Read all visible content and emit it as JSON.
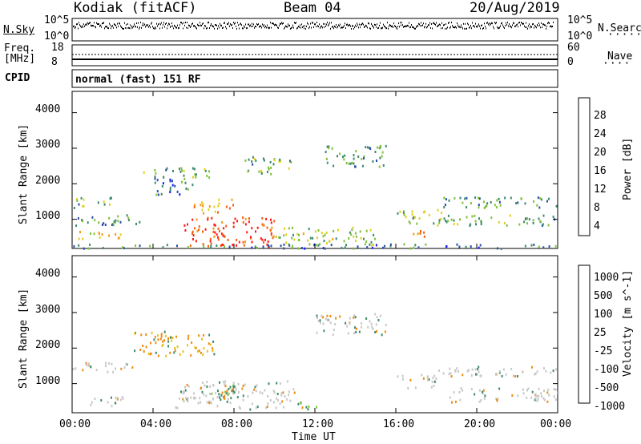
{
  "header": {
    "station": "Kodiak (fitACF)",
    "beam": "Beam 04",
    "date": "20/Aug/2019"
  },
  "top_panels": {
    "nsky": {
      "label": "N.Sky",
      "ticks": [
        "10^5",
        "10^0"
      ]
    },
    "nsearch": {
      "label": "N.Search",
      "ticks": [
        "10^5",
        "10^0"
      ]
    },
    "freq": {
      "label_line1": "Freq.",
      "label_line2": "[MHz]",
      "ticks": [
        "18",
        "8"
      ]
    },
    "nave": {
      "label": "Nave",
      "ticks": [
        "60",
        "0"
      ]
    },
    "cpid": {
      "label": "CPID",
      "value": "normal (fast) 151 RF"
    }
  },
  "colors": {
    "power_scale": [
      "#1a1aff",
      "#2a4fa8",
      "#3c8a6e",
      "#7fc13a",
      "#e0d020",
      "#f39a10",
      "#f06010",
      "#ff1a1a"
    ],
    "velocity_scale": [
      "#1a2ad0",
      "#2a5ab0",
      "#3f8a6a",
      "#7ec83a",
      "#c8c8c8",
      "#e8c020",
      "#f08a10",
      "#f04010",
      "#ff0000"
    ]
  },
  "chart_data": [
    {
      "type": "heatmap",
      "title": "Power",
      "xlabel": "Time UT",
      "ylabel": "Slant Range [km]",
      "x_ticks": [
        "00:00",
        "04:00",
        "08:00",
        "12:00",
        "16:00",
        "20:00",
        "00:00"
      ],
      "xlim": [
        "00:00",
        "24:00"
      ],
      "y_ticks": [
        1000,
        2000,
        3000,
        4000
      ],
      "ylim": [
        180,
        4600
      ],
      "colorbar": {
        "label": "Power [dB]",
        "ticks": [
          4,
          8,
          12,
          16,
          20,
          24,
          28
        ],
        "range": [
          0,
          30
        ]
      },
      "regions": [
        {
          "t": [
            0.0,
            2.0
          ],
          "range": [
            1350,
            1650
          ],
          "value": 12
        },
        {
          "t": [
            0.0,
            3.5
          ],
          "range": [
            850,
            1150
          ],
          "value": 10
        },
        {
          "t": [
            0.3,
            2.5
          ],
          "range": [
            450,
            700
          ],
          "value": 18
        },
        {
          "t": [
            3.5,
            7.0
          ],
          "range": [
            2200,
            2500
          ],
          "value": 12
        },
        {
          "t": [
            4.0,
            6.0
          ],
          "range": [
            1700,
            2200
          ],
          "value": 8
        },
        {
          "t": [
            5.5,
            10.0
          ],
          "range": [
            250,
            1100
          ],
          "value": 26
        },
        {
          "t": [
            6.0,
            8.0
          ],
          "range": [
            1200,
            1600
          ],
          "value": 20
        },
        {
          "t": [
            8.5,
            11.0
          ],
          "range": [
            2300,
            2800
          ],
          "value": 12
        },
        {
          "t": [
            10.0,
            15.0
          ],
          "range": [
            300,
            800
          ],
          "value": 14
        },
        {
          "t": [
            12.5,
            15.5
          ],
          "range": [
            2500,
            3100
          ],
          "value": 10
        },
        {
          "t": [
            16.0,
            18.5
          ],
          "range": [
            900,
            1300
          ],
          "value": 14
        },
        {
          "t": [
            16.5,
            17.5
          ],
          "range": [
            450,
            700
          ],
          "value": 22
        },
        {
          "t": [
            18.0,
            24.0
          ],
          "range": [
            1350,
            1650
          ],
          "value": 10
        },
        {
          "t": [
            18.0,
            24.0
          ],
          "range": [
            850,
            1150
          ],
          "value": 12
        },
        {
          "t": [
            0.0,
            24.0
          ],
          "range": [
            200,
            330
          ],
          "value": 8
        }
      ]
    },
    {
      "type": "heatmap",
      "title": "Velocity",
      "xlabel": "Time UT",
      "ylabel": "Slant Range [km]",
      "x_ticks": [
        "00:00",
        "04:00",
        "08:00",
        "12:00",
        "16:00",
        "20:00",
        "00:00"
      ],
      "xlim": [
        "00:00",
        "24:00"
      ],
      "y_ticks": [
        1000,
        2000,
        3000,
        4000
      ],
      "ylim": [
        180,
        4600
      ],
      "colorbar": {
        "label": "Velocity [m s^-1]",
        "ticks": [
          "1000",
          "500",
          "100",
          "25",
          "-25",
          "-100",
          "-500",
          "-1000"
        ]
      },
      "regions": [
        {
          "t": [
            0.0,
            3.0
          ],
          "range": [
            1350,
            1650
          ],
          "value": 0
        },
        {
          "t": [
            0.5,
            2.5
          ],
          "range": [
            400,
            700
          ],
          "value": 0
        },
        {
          "t": [
            3.0,
            7.0
          ],
          "range": [
            1800,
            2500
          ],
          "value": -100
        },
        {
          "t": [
            5.0,
            11.0
          ],
          "range": [
            300,
            1100
          ],
          "value": 0
        },
        {
          "t": [
            6.5,
            8.5
          ],
          "range": [
            600,
            1000
          ],
          "value": 100
        },
        {
          "t": [
            11.0,
            12.5
          ],
          "range": [
            300,
            500
          ],
          "value": 100
        },
        {
          "t": [
            12.0,
            15.5
          ],
          "range": [
            2400,
            3000
          ],
          "value": 0
        },
        {
          "t": [
            16.0,
            18.0
          ],
          "range": [
            900,
            1300
          ],
          "value": 0
        },
        {
          "t": [
            18.0,
            24.0
          ],
          "range": [
            1200,
            1500
          ],
          "value": 0
        },
        {
          "t": [
            18.5,
            24.0
          ],
          "range": [
            500,
            900
          ],
          "value": 0
        }
      ]
    }
  ]
}
